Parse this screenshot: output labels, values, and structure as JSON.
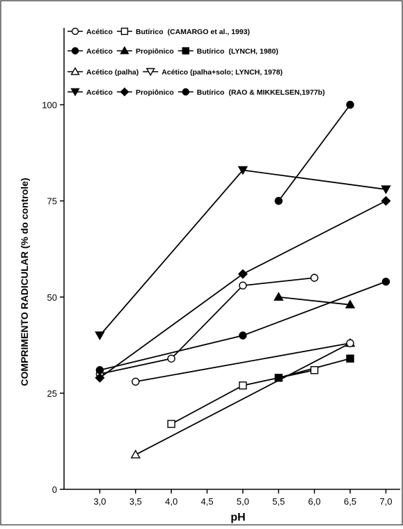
{
  "chart_data": {
    "type": "line",
    "xlabel": "pH",
    "ylabel": "COMPRIMENTO RADICULAR (% do controle)",
    "xlim": [
      2.5,
      7.2
    ],
    "ylim": [
      0,
      120
    ],
    "x_ticks": [
      "3,0",
      "3,5",
      "4,0",
      "4,5",
      "5,0",
      "5,5",
      "6,0",
      "6,5",
      "7,0"
    ],
    "x_tick_values": [
      3.0,
      3.5,
      4.0,
      4.5,
      5.0,
      5.5,
      6.0,
      6.5,
      7.0
    ],
    "y_ticks": [
      "0",
      "25",
      "50",
      "75",
      "100"
    ],
    "y_tick_values": [
      0,
      25,
      50,
      75,
      100
    ],
    "legend": [
      {
        "entries": [
          {
            "marker": "circle-open",
            "label": "Acético"
          },
          {
            "marker": "square-open",
            "label": "Butírico"
          }
        ],
        "source": "(CAMARGO et al., 1993)"
      },
      {
        "entries": [
          {
            "marker": "circle-filled",
            "label": "Acético"
          },
          {
            "marker": "triangle-filled",
            "label": "Propiônico"
          },
          {
            "marker": "square-filled",
            "label": "Butírico"
          }
        ],
        "source": "(LYNCH, 1980)"
      },
      {
        "entries": [
          {
            "marker": "triangle-up-open",
            "label": "Acético (palha)"
          },
          {
            "marker": "triangle-down-open",
            "label": "Acético (palha+solo; LYNCH, 1978)"
          }
        ],
        "source": ""
      },
      {
        "entries": [
          {
            "marker": "triangle-down-filled",
            "label": "Acético"
          },
          {
            "marker": "diamond-filled",
            "label": "Propiônico"
          },
          {
            "marker": "circle-filled",
            "label": "Butírico"
          }
        ],
        "source": "(RAO & MIKKELSEN,1977b)"
      }
    ],
    "series": [
      {
        "marker": "circle-open",
        "x": [
          3.0,
          4.0,
          5.0,
          6.0
        ],
        "y": [
          30,
          34,
          53,
          55
        ]
      },
      {
        "marker": "square-open",
        "x": [
          4.0,
          5.0,
          6.0
        ],
        "y": [
          17,
          27,
          31
        ]
      },
      {
        "marker": "circle-filled",
        "x": [
          3.0,
          5.0,
          7.0
        ],
        "y": [
          31,
          40,
          54
        ]
      },
      {
        "marker": "triangle-filled",
        "x": [
          5.5,
          6.5
        ],
        "y": [
          50,
          48
        ]
      },
      {
        "marker": "square-filled",
        "x": [
          5.5,
          6.5
        ],
        "y": [
          29,
          34
        ]
      },
      {
        "marker": "triangle-up-open",
        "x": [
          3.5,
          6.5
        ],
        "y": [
          9,
          38
        ]
      },
      {
        "marker": "circle-open",
        "x": [
          3.5,
          6.5
        ],
        "y": [
          28,
          38
        ]
      },
      {
        "marker": "triangle-down-filled",
        "x": [
          3.0,
          5.0,
          7.0
        ],
        "y": [
          40,
          83,
          78
        ]
      },
      {
        "marker": "diamond-filled",
        "x": [
          3.0,
          5.0,
          7.0
        ],
        "y": [
          29,
          56,
          75
        ]
      },
      {
        "marker": "circle-filled",
        "x": [
          5.5,
          6.5
        ],
        "y": [
          75,
          100
        ]
      }
    ]
  }
}
